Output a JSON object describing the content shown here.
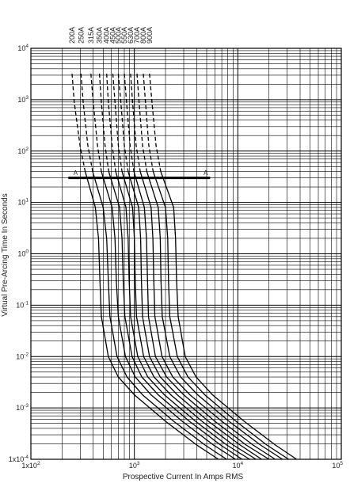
{
  "chart_data": {
    "type": "line",
    "title": "",
    "xlabel": "Prospective Current In Amps RMS",
    "ylabel": "Virtual Pre-Arcing Time In Seconds",
    "x_scale": "log",
    "y_scale": "log",
    "xlim": [
      100,
      100000
    ],
    "ylim": [
      0.0001,
      10000
    ],
    "grid": true,
    "x_ticks": [
      {
        "value": 100,
        "label": "1x10",
        "sup": "2"
      },
      {
        "value": 1000,
        "label": "10",
        "sup": "3"
      },
      {
        "value": 10000,
        "label": "10",
        "sup": "4"
      },
      {
        "value": 100000,
        "label": "10",
        "sup": "5"
      }
    ],
    "y_ticks": [
      {
        "value": 10000,
        "label": "10",
        "sup": "4"
      },
      {
        "value": 1000,
        "label": "10",
        "sup": "3"
      },
      {
        "value": 100,
        "label": "10",
        "sup": "2"
      },
      {
        "value": 10,
        "label": "10",
        "sup": "1"
      },
      {
        "value": 1,
        "label": "10",
        "sup": "0"
      },
      {
        "value": 0.1,
        "label": "10",
        "sup": "-1"
      },
      {
        "value": 0.01,
        "label": "10",
        "sup": "-2"
      },
      {
        "value": 0.001,
        "label": "10",
        "sup": "-3"
      },
      {
        "value": 0.0001,
        "label": "1x10",
        "sup": "-4"
      }
    ],
    "series": [
      {
        "name": "200A",
        "dashed_points": [
          [
            250,
            3200
          ],
          [
            262,
            900
          ],
          [
            300,
            120
          ],
          [
            335,
            40
          ]
        ],
        "points": [
          [
            335,
            40
          ],
          [
            420,
            8
          ],
          [
            450,
            2
          ],
          [
            465,
            0.3
          ],
          [
            480,
            0.06
          ],
          [
            560,
            0.01
          ],
          [
            700,
            0.004
          ],
          [
            1000,
            0.0018
          ],
          [
            2000,
            0.00055
          ],
          [
            4000,
            0.00019
          ],
          [
            6500,
            0.0001
          ]
        ]
      },
      {
        "name": "250A",
        "dashed_points": [
          [
            305,
            3200
          ],
          [
            320,
            900
          ],
          [
            355,
            130
          ],
          [
            395,
            40
          ]
        ],
        "points": [
          [
            395,
            40
          ],
          [
            500,
            8
          ],
          [
            540,
            2
          ],
          [
            560,
            0.3
          ],
          [
            580,
            0.06
          ],
          [
            680,
            0.01
          ],
          [
            850,
            0.004
          ],
          [
            1200,
            0.0018
          ],
          [
            2400,
            0.00055
          ],
          [
            4800,
            0.00019
          ],
          [
            7800,
            0.0001
          ]
        ]
      },
      {
        "name": "315A",
        "dashed_points": [
          [
            380,
            3200
          ],
          [
            400,
            900
          ],
          [
            440,
            130
          ],
          [
            480,
            40
          ]
        ],
        "points": [
          [
            480,
            40
          ],
          [
            610,
            8
          ],
          [
            650,
            2
          ],
          [
            670,
            0.3
          ],
          [
            700,
            0.06
          ],
          [
            820,
            0.01
          ],
          [
            1020,
            0.004
          ],
          [
            1450,
            0.0018
          ],
          [
            2900,
            0.00055
          ],
          [
            5800,
            0.00019
          ],
          [
            9500,
            0.0001
          ]
        ]
      },
      {
        "name": "350A",
        "dashed_points": [
          [
            460,
            3200
          ],
          [
            480,
            900
          ],
          [
            520,
            130
          ],
          [
            565,
            40
          ]
        ],
        "points": [
          [
            565,
            40
          ],
          [
            720,
            8
          ],
          [
            760,
            2
          ],
          [
            780,
            0.3
          ],
          [
            810,
            0.06
          ],
          [
            950,
            0.01
          ],
          [
            1180,
            0.004
          ],
          [
            1700,
            0.0018
          ],
          [
            3400,
            0.00055
          ],
          [
            6800,
            0.00019
          ],
          [
            11000,
            0.0001
          ]
        ]
      },
      {
        "name": "400A",
        "dashed_points": [
          [
            540,
            3200
          ],
          [
            560,
            900
          ],
          [
            610,
            130
          ],
          [
            660,
            40
          ]
        ],
        "points": [
          [
            660,
            40
          ],
          [
            830,
            8
          ],
          [
            870,
            2
          ],
          [
            890,
            0.3
          ],
          [
            920,
            0.06
          ],
          [
            1080,
            0.01
          ],
          [
            1350,
            0.004
          ],
          [
            1950,
            0.0018
          ],
          [
            3900,
            0.00055
          ],
          [
            7800,
            0.00019
          ],
          [
            13000,
            0.0001
          ]
        ]
      },
      {
        "name": "450A",
        "dashed_points": [
          [
            620,
            3200
          ],
          [
            650,
            900
          ],
          [
            700,
            130
          ],
          [
            760,
            40
          ]
        ],
        "points": [
          [
            760,
            40
          ],
          [
            960,
            8
          ],
          [
            1000,
            2
          ],
          [
            1020,
            0.3
          ],
          [
            1050,
            0.06
          ],
          [
            1230,
            0.01
          ],
          [
            1550,
            0.004
          ],
          [
            2250,
            0.0018
          ],
          [
            4500,
            0.00055
          ],
          [
            9000,
            0.00019
          ],
          [
            15000,
            0.0001
          ]
        ]
      },
      {
        "name": "500A",
        "dashed_points": [
          [
            700,
            3200
          ],
          [
            740,
            900
          ],
          [
            800,
            130
          ],
          [
            870,
            40
          ]
        ],
        "points": [
          [
            870,
            40
          ],
          [
            1100,
            8
          ],
          [
            1150,
            2
          ],
          [
            1170,
            0.3
          ],
          [
            1200,
            0.06
          ],
          [
            1400,
            0.01
          ],
          [
            1780,
            0.004
          ],
          [
            2600,
            0.0018
          ],
          [
            5200,
            0.00055
          ],
          [
            10500,
            0.00019
          ],
          [
            17000,
            0.0001
          ]
        ]
      },
      {
        "name": "550A",
        "dashed_points": [
          [
            800,
            3200
          ],
          [
            840,
            900
          ],
          [
            910,
            130
          ],
          [
            990,
            40
          ]
        ],
        "points": [
          [
            990,
            40
          ],
          [
            1250,
            8
          ],
          [
            1310,
            2
          ],
          [
            1340,
            0.3
          ],
          [
            1370,
            0.06
          ],
          [
            1600,
            0.01
          ],
          [
            2050,
            0.004
          ],
          [
            3000,
            0.0018
          ],
          [
            6000,
            0.00055
          ],
          [
            12000,
            0.00019
          ],
          [
            20000,
            0.0001
          ]
        ]
      },
      {
        "name": "630A",
        "dashed_points": [
          [
            920,
            3200
          ],
          [
            960,
            900
          ],
          [
            1040,
            130
          ],
          [
            1140,
            40
          ]
        ],
        "points": [
          [
            1140,
            40
          ],
          [
            1450,
            8
          ],
          [
            1510,
            2
          ],
          [
            1540,
            0.3
          ],
          [
            1580,
            0.06
          ],
          [
            1850,
            0.01
          ],
          [
            2350,
            0.004
          ],
          [
            3450,
            0.0018
          ],
          [
            7000,
            0.00055
          ],
          [
            14000,
            0.00019
          ],
          [
            23000,
            0.0001
          ]
        ]
      },
      {
        "name": "700A",
        "dashed_points": [
          [
            1060,
            3200
          ],
          [
            1110,
            900
          ],
          [
            1200,
            130
          ],
          [
            1320,
            40
          ]
        ],
        "points": [
          [
            1320,
            40
          ],
          [
            1700,
            8
          ],
          [
            1780,
            2
          ],
          [
            1810,
            0.3
          ],
          [
            1860,
            0.06
          ],
          [
            2200,
            0.01
          ],
          [
            2800,
            0.004
          ],
          [
            4100,
            0.0018
          ],
          [
            8200,
            0.00055
          ],
          [
            16500,
            0.00019
          ],
          [
            27000,
            0.0001
          ]
        ]
      },
      {
        "name": "800A",
        "dashed_points": [
          [
            1220,
            3200
          ],
          [
            1280,
            900
          ],
          [
            1380,
            130
          ],
          [
            1520,
            40
          ]
        ],
        "points": [
          [
            1520,
            40
          ],
          [
            2000,
            8
          ],
          [
            2100,
            2
          ],
          [
            2140,
            0.3
          ],
          [
            2200,
            0.06
          ],
          [
            2600,
            0.01
          ],
          [
            3300,
            0.004
          ],
          [
            4800,
            0.0018
          ],
          [
            9600,
            0.00055
          ],
          [
            19000,
            0.00019
          ],
          [
            31000,
            0.0001
          ]
        ]
      },
      {
        "name": "900A",
        "dashed_points": [
          [
            1400,
            3200
          ],
          [
            1480,
            900
          ],
          [
            1620,
            130
          ],
          [
            1800,
            40
          ]
        ],
        "points": [
          [
            1800,
            40
          ],
          [
            2400,
            8
          ],
          [
            2500,
            2
          ],
          [
            2560,
            0.3
          ],
          [
            2650,
            0.06
          ],
          [
            3100,
            0.01
          ],
          [
            3950,
            0.004
          ],
          [
            5700,
            0.0018
          ],
          [
            11500,
            0.00055
          ],
          [
            23000,
            0.00019
          ],
          [
            37000,
            0.0001
          ]
        ]
      }
    ],
    "annotations": [
      {
        "label": "A",
        "x": 270,
        "y": 34
      },
      {
        "label": "A",
        "x": 4900,
        "y": 34
      }
    ],
    "reference_line": {
      "x": [
        230,
        5400
      ],
      "y": 30
    }
  }
}
